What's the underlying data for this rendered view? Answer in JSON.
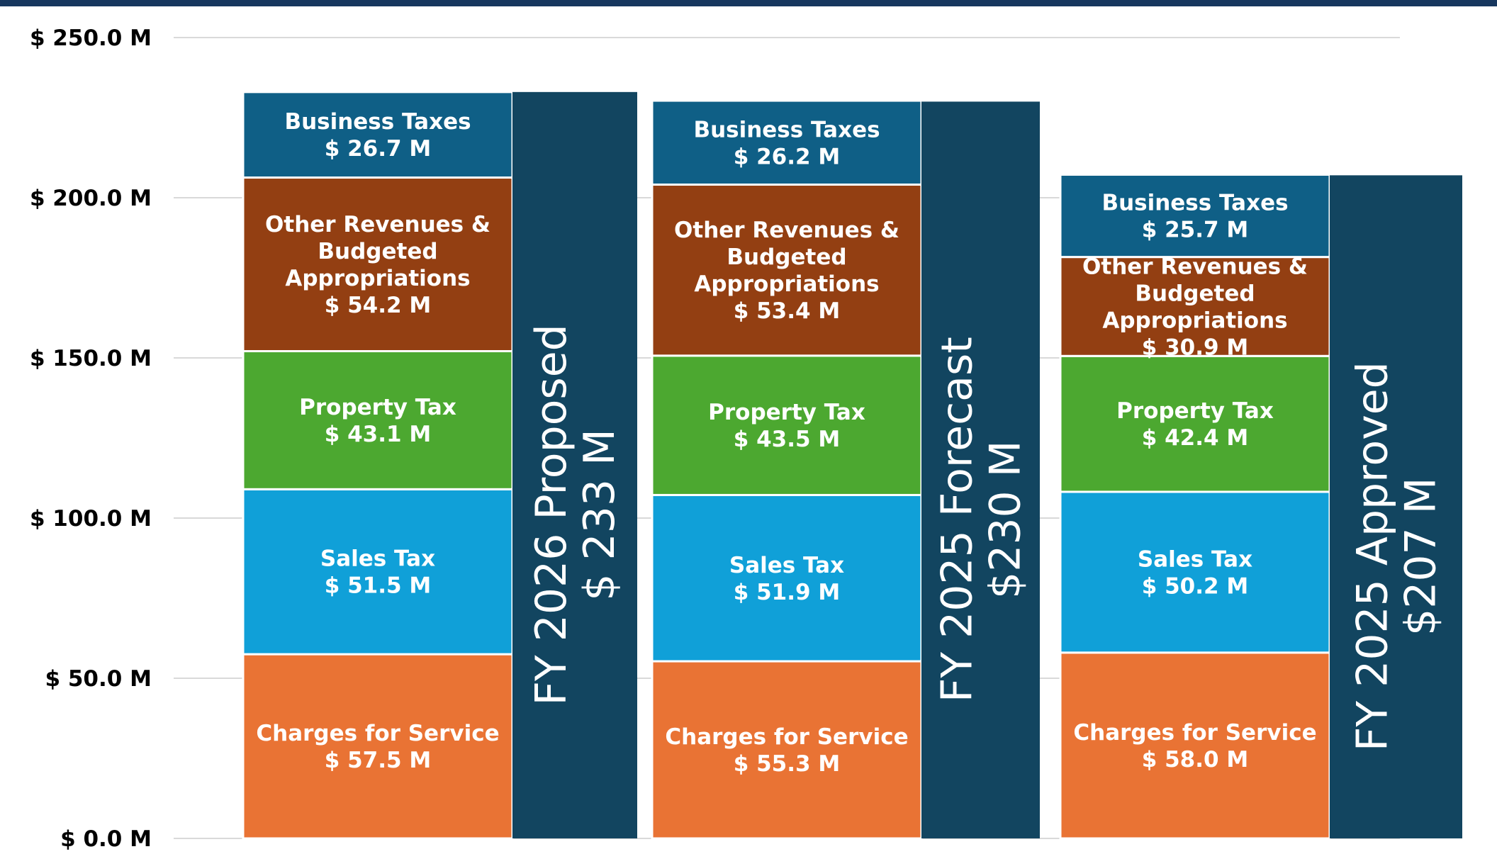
{
  "colors": {
    "top_band": "#17375e",
    "total_bar": "#124560",
    "gridline": "#d9d9d9",
    "Business Taxes": "#0f5f86",
    "Other Revenues & Budgeted Appropriations": "#933f12",
    "Property Tax": "#4ca830",
    "Sales Tax": "#10a0d8",
    "Charges for Service": "#e97334"
  },
  "chart_data": {
    "type": "bar",
    "stacked": true,
    "ylim": [
      0,
      250
    ],
    "yticks": [
      0,
      50,
      100,
      150,
      200,
      250
    ],
    "ytick_labels": [
      "$ 0.0 M",
      "$ 50.0 M",
      "$ 100.0 M",
      "$ 150.0 M",
      "$ 200.0 M",
      "$ 250.0 M"
    ],
    "grid": true,
    "bars": [
      {
        "total": 233,
        "total_label": [
          "FY 2026 Proposed",
          "$  233 M"
        ],
        "segments": [
          {
            "name": "Charges for Service",
            "value": 57.5,
            "label": [
              "Charges for Service",
              "$ 57.5 M"
            ]
          },
          {
            "name": "Sales Tax",
            "value": 51.5,
            "label": [
              "Sales Tax",
              "$ 51.5 M"
            ]
          },
          {
            "name": "Property Tax",
            "value": 43.1,
            "label": [
              "Property Tax",
              "$ 43.1 M"
            ]
          },
          {
            "name": "Other Revenues & Budgeted Appropriations",
            "value": 54.2,
            "label": [
              "Other Revenues &",
              "Budgeted",
              "Appropriations",
              "$ 54.2 M"
            ]
          },
          {
            "name": "Business Taxes",
            "value": 26.7,
            "label": [
              "Business Taxes",
              "$ 26.7 M"
            ]
          }
        ]
      },
      {
        "total": 230,
        "total_label": [
          "FY 2025 Forecast",
          "$230 M"
        ],
        "segments": [
          {
            "name": "Charges for Service",
            "value": 55.3,
            "label": [
              "Charges for Service",
              "$ 55.3 M"
            ]
          },
          {
            "name": "Sales Tax",
            "value": 51.9,
            "label": [
              "Sales Tax",
              "$ 51.9 M"
            ]
          },
          {
            "name": "Property Tax",
            "value": 43.5,
            "label": [
              "Property Tax",
              "$ 43.5 M"
            ]
          },
          {
            "name": "Other Revenues & Budgeted Appropriations",
            "value": 53.4,
            "label": [
              "Other Revenues &",
              "Budgeted",
              "Appropriations",
              "$ 53.4 M"
            ]
          },
          {
            "name": "Business Taxes",
            "value": 26.2,
            "label": [
              "Business Taxes",
              "$ 26.2 M"
            ]
          }
        ]
      },
      {
        "total": 207,
        "total_label": [
          "FY 2025 Approved",
          "$207 M"
        ],
        "segments": [
          {
            "name": "Charges for Service",
            "value": 58.0,
            "label": [
              "Charges for Service",
              "$ 58.0 M"
            ]
          },
          {
            "name": "Sales Tax",
            "value": 50.2,
            "label": [
              "Sales Tax",
              "$ 50.2 M"
            ]
          },
          {
            "name": "Property Tax",
            "value": 42.4,
            "label": [
              "Property Tax",
              "$ 42.4 M"
            ]
          },
          {
            "name": "Other Revenues & Budgeted Appropriations",
            "value": 30.9,
            "label": [
              "Other Revenues &",
              "Budgeted",
              "Appropriations",
              "$ 30.9 M"
            ]
          },
          {
            "name": "Business Taxes",
            "value": 25.7,
            "label": [
              "Business Taxes",
              "$ 25.7 M"
            ]
          }
        ]
      }
    ]
  }
}
